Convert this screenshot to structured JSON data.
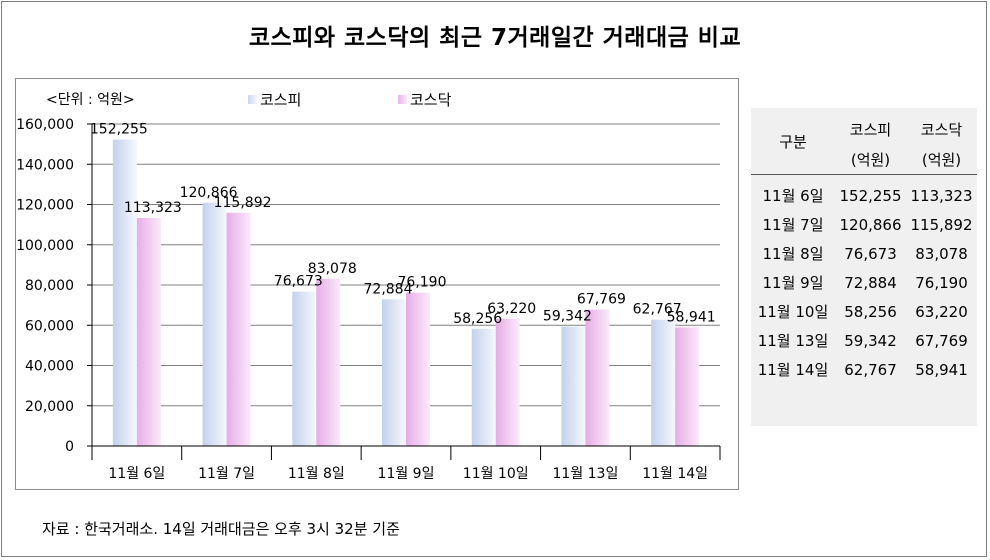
{
  "title": "코스피와 코스닥의 최근 7거래일간 거래대금 비교",
  "unit_label": "<단위 : 억원>",
  "source_note": "자료 : 한국거래소. 14일 거래대금은 오후 3시 32분 기준",
  "colors": {
    "kospi_dark": "#c3d1ec",
    "kospi_light": "#f5f8fd",
    "kosdaq_dark": "#e6ade6",
    "kosdaq_light": "#fbeafb",
    "grid": "#808080"
  },
  "chart_data": {
    "type": "bar",
    "categories": [
      "11월 6일",
      "11월 7일",
      "11월 8일",
      "11월 9일",
      "11월 10일",
      "11월 13일",
      "11월 14일"
    ],
    "series": [
      {
        "name": "코스피",
        "values": [
          152255,
          120866,
          76673,
          72884,
          58256,
          59342,
          62767
        ],
        "labels": [
          "152,255",
          "120,866",
          "76,673",
          "72,884",
          "58,256",
          "59,342",
          "62,767"
        ]
      },
      {
        "name": "코스닥",
        "values": [
          113323,
          115892,
          83078,
          76190,
          63220,
          67769,
          58941
        ],
        "labels": [
          "113,323",
          "115,892",
          "83,078",
          "76,190",
          "63,220",
          "67,769",
          "58,941"
        ]
      }
    ],
    "ylim": [
      0,
      160000
    ],
    "yticks": [
      0,
      20000,
      40000,
      60000,
      80000,
      100000,
      120000,
      140000,
      160000
    ],
    "ytick_labels": [
      "0",
      "20,000",
      "40,000",
      "60,000",
      "80,000",
      "100,000",
      "120,000",
      "140,000",
      "160,000"
    ],
    "grid": true,
    "legend": "top"
  },
  "table": {
    "header": {
      "col1": "구분",
      "col2_line1": "코스피",
      "col2_line2": "(억원)",
      "col3_line1": "코스닥",
      "col3_line2": "(억원)"
    },
    "rows": [
      {
        "date": "11월 6일",
        "kospi": "152,255",
        "kosdaq": "113,323"
      },
      {
        "date": "11월 7일",
        "kospi": "120,866",
        "kosdaq": "115,892"
      },
      {
        "date": "11월 8일",
        "kospi": "76,673",
        "kosdaq": "83,078"
      },
      {
        "date": "11월 9일",
        "kospi": "72,884",
        "kosdaq": "76,190"
      },
      {
        "date": "11월 10일",
        "kospi": "58,256",
        "kosdaq": "63,220"
      },
      {
        "date": "11월 13일",
        "kospi": "59,342",
        "kosdaq": "67,769"
      },
      {
        "date": "11월 14일",
        "kospi": "62,767",
        "kosdaq": "58,941"
      }
    ]
  }
}
